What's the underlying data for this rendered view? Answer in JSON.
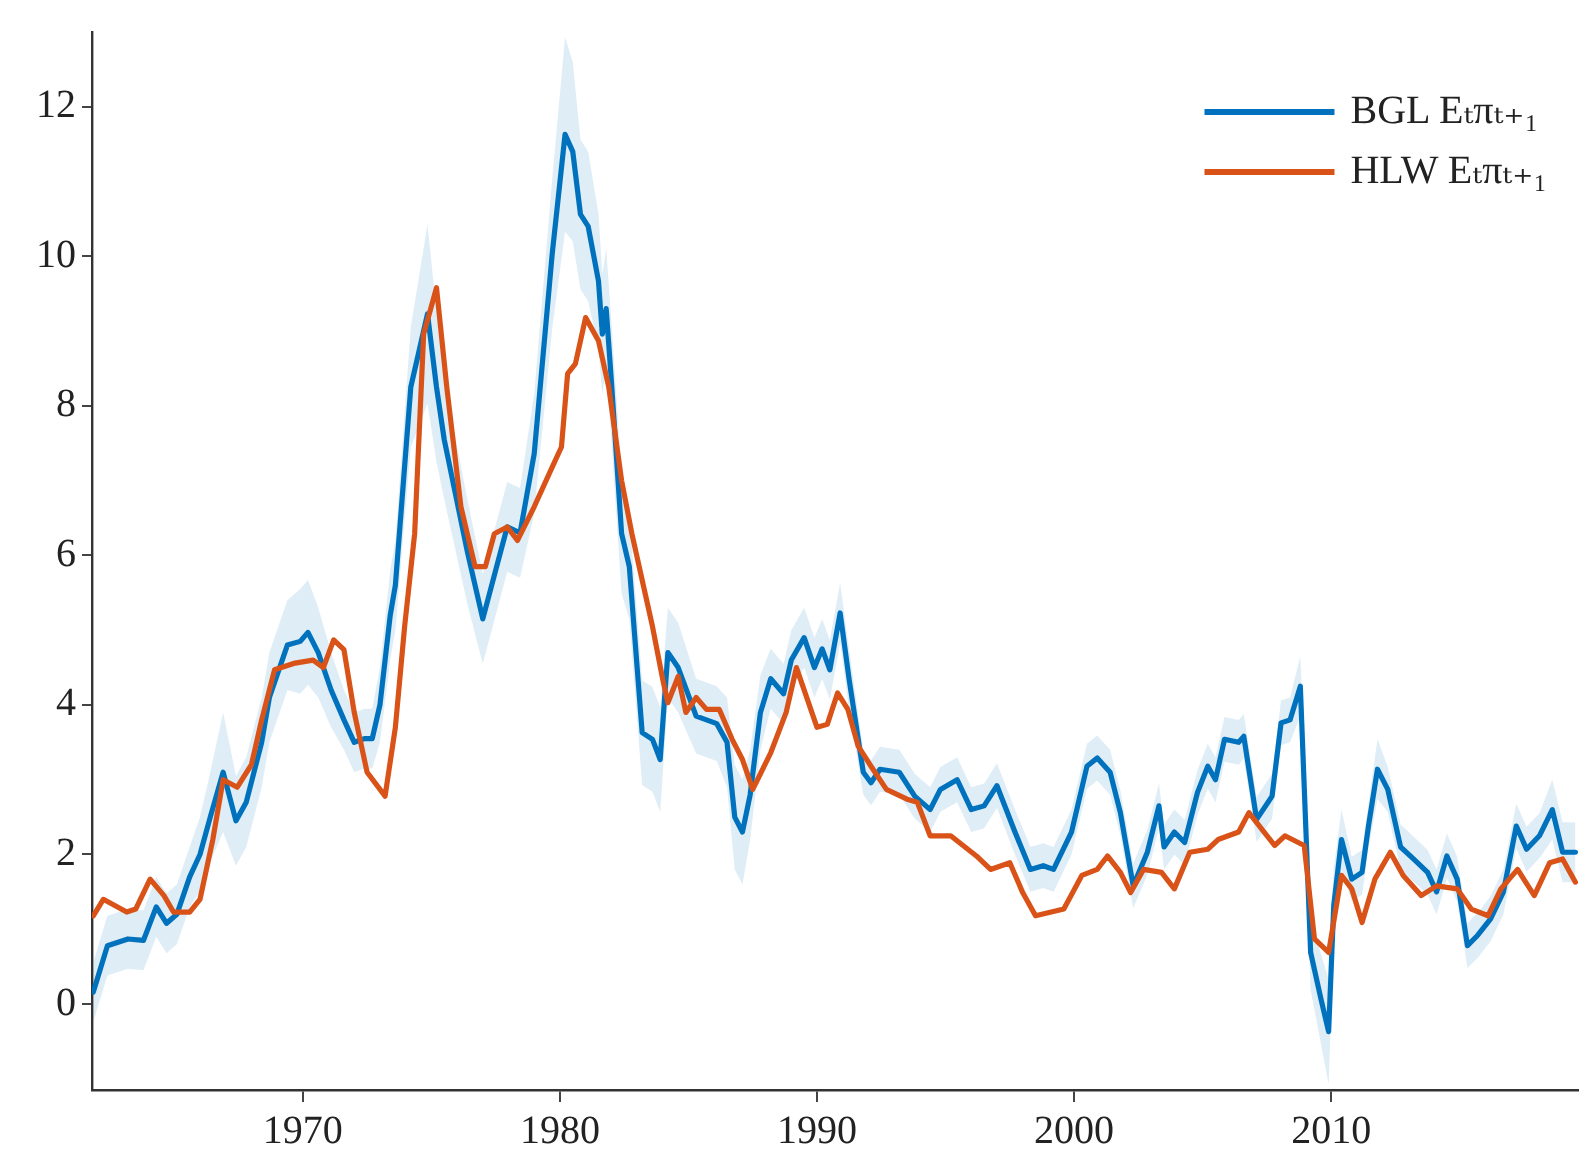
{
  "chart_data": {
    "type": "line",
    "xlim": [
      1961.8,
      2019.6
    ],
    "xticks": [
      1970,
      1980,
      1990,
      2000,
      2010
    ],
    "ylim": [
      -1.15,
      13
    ],
    "yticks": [
      0,
      2,
      4,
      6,
      8,
      10,
      12
    ],
    "legend": "top right",
    "marker": "none",
    "line_style": "solid",
    "series": [
      {
        "name": "BGL Eₜπₜ₊₁",
        "color": "#0072bd",
        "x": [
          1961.85,
          1962.4,
          1963.2,
          1963.8,
          1964.3,
          1964.7,
          1965.1,
          1965.6,
          1966.0,
          1966.4,
          1966.9,
          1967.4,
          1967.8,
          1968.4,
          1968.7,
          1969.4,
          1969.9,
          1970.2,
          1970.6,
          1971.1,
          1971.6,
          1972.0,
          1972.4,
          1972.7,
          1973.0,
          1973.4,
          1973.6,
          1974.2,
          1974.85,
          1975.2,
          1975.5,
          1976.4,
          1977.0,
          1977.5,
          1977.95,
          1978.45,
          1979.0,
          1979.7,
          1980.2,
          1980.5,
          1980.8,
          1981.1,
          1981.5,
          1981.65,
          1981.8,
          1982.0,
          1982.4,
          1982.7,
          1983.2,
          1983.6,
          1983.9,
          1984.2,
          1984.6,
          1985.3,
          1986.1,
          1986.5,
          1986.8,
          1987.1,
          1987.4,
          1987.8,
          1988.2,
          1988.7,
          1989.0,
          1989.5,
          1989.9,
          1990.2,
          1990.5,
          1990.9,
          1991.25,
          1991.8,
          1992.1,
          1992.45,
          1993.2,
          1993.8,
          1994.4,
          1994.8,
          1995.45,
          1996.0,
          1996.5,
          1997.0,
          1997.7,
          1998.3,
          1998.8,
          1999.2,
          1999.9,
          2000.5,
          2000.9,
          2001.4,
          2001.8,
          2002.3,
          2002.85,
          2003.3,
          2003.5,
          2003.9,
          2004.3,
          2004.8,
          2005.2,
          2005.5,
          2005.85,
          2006.4,
          2006.6,
          2007.1,
          2007.7,
          2008.05,
          2008.4,
          2008.8,
          2009.2,
          2009.6,
          2009.9,
          2010.1,
          2010.4,
          2010.8,
          2011.2,
          2011.45,
          2011.8,
          2012.2,
          2012.7,
          2013.2,
          2013.75,
          2014.1,
          2014.5,
          2014.9,
          2015.3,
          2015.7,
          2016.2,
          2016.7,
          2017.2,
          2017.6,
          2018.1,
          2018.6,
          2019.0,
          2019.5
        ],
        "values": [
          0.16,
          0.78,
          0.87,
          0.85,
          1.3,
          1.08,
          1.2,
          1.7,
          2.0,
          2.5,
          3.1,
          2.45,
          2.7,
          3.5,
          4.1,
          4.8,
          4.85,
          4.97,
          4.7,
          4.2,
          3.8,
          3.5,
          3.55,
          3.55,
          4.0,
          5.2,
          5.6,
          8.25,
          9.23,
          8.25,
          7.55,
          6.05,
          5.15,
          5.8,
          6.38,
          6.3,
          7.36,
          10.03,
          11.63,
          11.4,
          10.56,
          10.4,
          9.67,
          8.96,
          9.3,
          8.34,
          6.29,
          5.85,
          3.63,
          3.54,
          3.27,
          4.7,
          4.5,
          3.85,
          3.75,
          3.5,
          2.5,
          2.3,
          2.8,
          3.9,
          4.35,
          4.15,
          4.6,
          4.9,
          4.5,
          4.75,
          4.47,
          5.23,
          4.34,
          3.1,
          2.96,
          3.14,
          3.1,
          2.78,
          2.6,
          2.87,
          3.0,
          2.6,
          2.65,
          2.92,
          2.3,
          1.8,
          1.85,
          1.8,
          2.3,
          3.18,
          3.29,
          3.1,
          2.56,
          1.58,
          2.03,
          2.65,
          2.1,
          2.3,
          2.16,
          2.83,
          3.18,
          3.0,
          3.54,
          3.5,
          3.58,
          2.47,
          2.78,
          3.76,
          3.8,
          4.25,
          0.69,
          0.07,
          -0.37,
          1.32,
          2.2,
          1.67,
          1.76,
          2.38,
          3.14,
          2.87,
          2.1,
          1.94,
          1.76,
          1.5,
          1.98,
          1.67,
          0.78,
          0.92,
          1.14,
          1.5,
          2.38,
          2.07,
          2.25,
          2.6,
          2.03,
          2.03
        ],
        "lower": [
          -0.24,
          0.38,
          0.47,
          0.45,
          0.9,
          0.68,
          0.8,
          1.3,
          1.5,
          1.9,
          2.3,
          1.85,
          2.1,
          2.9,
          3.5,
          4.2,
          4.15,
          4.27,
          4.1,
          3.7,
          3.4,
          3.1,
          3.15,
          3.15,
          3.5,
          4.6,
          5.0,
          7.45,
          8.03,
          7.25,
          6.75,
          5.35,
          4.55,
          5.2,
          5.78,
          5.7,
          6.56,
          9.03,
          10.33,
          10.2,
          9.56,
          9.4,
          8.77,
          8.16,
          8.5,
          7.54,
          5.49,
          5.15,
          2.93,
          2.84,
          2.57,
          4.1,
          3.9,
          3.35,
          3.25,
          2.9,
          1.8,
          1.6,
          2.2,
          3.4,
          3.95,
          3.75,
          4.2,
          4.5,
          4.1,
          4.35,
          4.07,
          4.83,
          3.94,
          2.8,
          2.66,
          2.84,
          2.8,
          2.48,
          2.3,
          2.57,
          2.7,
          2.3,
          2.35,
          2.62,
          2.0,
          1.5,
          1.55,
          1.5,
          2.0,
          2.88,
          2.99,
          2.8,
          2.26,
          1.28,
          1.73,
          2.35,
          1.8,
          2.0,
          1.86,
          2.53,
          2.88,
          2.7,
          3.24,
          3.2,
          3.28,
          2.17,
          2.48,
          3.46,
          3.5,
          3.85,
          0.19,
          -0.53,
          -1.07,
          0.82,
          1.8,
          1.37,
          1.46,
          2.08,
          2.74,
          2.57,
          1.8,
          1.64,
          1.46,
          1.2,
          1.68,
          1.37,
          0.48,
          0.62,
          0.84,
          1.2,
          2.08,
          1.77,
          1.95,
          2.2,
          1.63,
          1.63
        ],
        "upper": [
          0.56,
          1.18,
          1.27,
          1.25,
          1.7,
          1.48,
          1.6,
          2.1,
          2.5,
          3.1,
          3.9,
          3.05,
          3.3,
          4.1,
          4.7,
          5.4,
          5.55,
          5.67,
          5.3,
          4.7,
          4.2,
          3.9,
          3.95,
          3.95,
          4.5,
          5.8,
          6.2,
          9.05,
          10.43,
          9.25,
          8.35,
          6.75,
          5.75,
          6.4,
          6.98,
          6.9,
          8.16,
          11.03,
          12.93,
          12.6,
          11.56,
          11.4,
          10.57,
          9.76,
          10.1,
          9.14,
          7.09,
          6.55,
          4.33,
          4.24,
          3.97,
          5.3,
          5.1,
          4.35,
          4.25,
          4.1,
          3.2,
          3.0,
          3.4,
          4.4,
          4.75,
          4.55,
          5.0,
          5.3,
          4.9,
          5.15,
          4.87,
          5.63,
          4.74,
          3.4,
          3.26,
          3.44,
          3.4,
          3.08,
          2.9,
          3.17,
          3.3,
          2.9,
          2.95,
          3.22,
          2.6,
          2.1,
          2.15,
          2.1,
          2.6,
          3.48,
          3.59,
          3.4,
          2.86,
          1.88,
          2.33,
          2.95,
          2.4,
          2.6,
          2.46,
          3.13,
          3.48,
          3.3,
          3.84,
          3.8,
          3.88,
          2.77,
          3.08,
          4.06,
          4.1,
          4.65,
          1.19,
          0.67,
          0.33,
          1.82,
          2.6,
          1.97,
          2.06,
          2.68,
          3.54,
          3.17,
          2.4,
          2.24,
          2.06,
          1.8,
          2.28,
          1.97,
          1.08,
          1.22,
          1.44,
          1.8,
          2.68,
          2.37,
          2.55,
          3.0,
          2.43,
          2.43
        ]
      },
      {
        "name": "HLW Eₜπₜ₊₁",
        "color": "#d95319",
        "x": [
          1961.85,
          1962.24,
          1963.15,
          1963.5,
          1964.06,
          1964.6,
          1964.97,
          1965.6,
          1966.0,
          1966.5,
          1966.9,
          1967.45,
          1968.0,
          1968.4,
          1968.9,
          1969.7,
          1970.4,
          1970.8,
          1971.2,
          1971.6,
          1972.0,
          1972.5,
          1973.2,
          1973.6,
          1973.96,
          1974.35,
          1974.7,
          1975.2,
          1975.6,
          1976.15,
          1976.7,
          1977.1,
          1977.45,
          1977.95,
          1978.35,
          1979.0,
          1979.7,
          1980.06,
          1980.3,
          1980.6,
          1981.0,
          1981.5,
          1981.9,
          1982.4,
          1982.8,
          1983.2,
          1983.6,
          1984.0,
          1984.2,
          1984.6,
          1984.9,
          1985.3,
          1985.7,
          1986.2,
          1986.7,
          1987.1,
          1987.5,
          1988.2,
          1988.8,
          1989.2,
          1990.0,
          1990.4,
          1990.8,
          1991.2,
          1991.6,
          1992.1,
          1992.7,
          1993.5,
          1993.9,
          1994.4,
          1995.2,
          1996.2,
          1996.75,
          1997.5,
          1998.0,
          1998.5,
          1999.6,
          2000.3,
          2000.9,
          2001.3,
          2001.8,
          2002.2,
          2002.7,
          2003.4,
          2003.9,
          2004.5,
          2005.2,
          2005.6,
          2006.4,
          2006.8,
          2007.3,
          2007.8,
          2008.2,
          2008.95,
          2009.35,
          2009.9,
          2010.4,
          2010.8,
          2011.2,
          2011.7,
          2012.3,
          2012.8,
          2013.5,
          2014.1,
          2014.9,
          2015.45,
          2016.1,
          2016.6,
          2017.25,
          2017.9,
          2018.5,
          2019.0,
          2019.5
        ],
        "values": [
          1.18,
          1.4,
          1.23,
          1.27,
          1.67,
          1.45,
          1.23,
          1.23,
          1.4,
          2.2,
          3.0,
          2.9,
          3.2,
          3.8,
          4.47,
          4.56,
          4.6,
          4.5,
          4.87,
          4.74,
          3.9,
          3.1,
          2.78,
          3.7,
          5.05,
          6.29,
          8.96,
          9.58,
          8.25,
          6.65,
          5.85,
          5.85,
          6.29,
          6.38,
          6.2,
          6.65,
          7.18,
          7.45,
          8.43,
          8.56,
          9.18,
          8.87,
          8.25,
          7.0,
          6.29,
          5.67,
          5.05,
          4.34,
          4.03,
          4.38,
          3.9,
          4.1,
          3.94,
          3.94,
          3.54,
          3.27,
          2.87,
          3.36,
          3.9,
          4.5,
          3.7,
          3.74,
          4.16,
          3.94,
          3.45,
          3.18,
          2.87,
          2.74,
          2.7,
          2.25,
          2.25,
          1.98,
          1.8,
          1.89,
          1.49,
          1.18,
          1.27,
          1.72,
          1.8,
          1.98,
          1.76,
          1.49,
          1.8,
          1.76,
          1.54,
          2.03,
          2.07,
          2.2,
          2.3,
          2.56,
          2.34,
          2.12,
          2.25,
          2.12,
          0.87,
          0.69,
          1.72,
          1.54,
          1.09,
          1.67,
          2.03,
          1.72,
          1.45,
          1.58,
          1.54,
          1.27,
          1.18,
          1.54,
          1.8,
          1.45,
          1.89,
          1.94,
          1.63
        ]
      }
    ]
  }
}
